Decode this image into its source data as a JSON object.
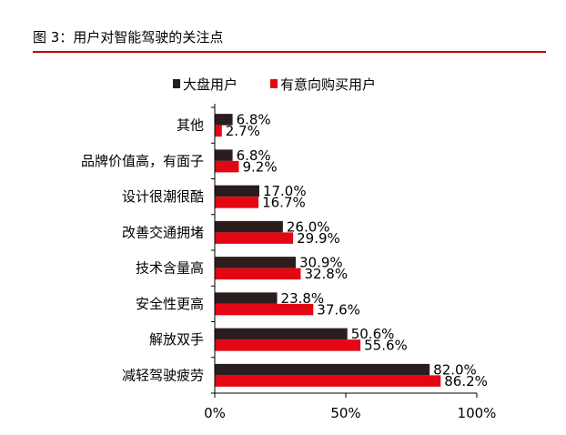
{
  "figure": {
    "title": "图 3：用户对智能驾驶的关注点"
  },
  "chart_data": {
    "type": "bar",
    "orientation": "horizontal",
    "categories": [
      "其他",
      "品牌价值高，有面子",
      "设计很潮很酷",
      "改善交通拥堵",
      "技术含量高",
      "安全性更高",
      "解放双手",
      "减轻驾驶疲劳"
    ],
    "series": [
      {
        "name": "大盘用户",
        "values": [
          6.8,
          6.8,
          17.0,
          26.0,
          30.9,
          23.8,
          50.6,
          82.0
        ],
        "labels": [
          "6.8%",
          "6.8%",
          "17.0%",
          "26.0%",
          "30.9%",
          "23.8%",
          "50.6%",
          "82.0%"
        ]
      },
      {
        "name": "有意向购买用户",
        "values": [
          2.7,
          9.2,
          16.7,
          29.9,
          32.8,
          37.6,
          55.6,
          86.2
        ],
        "labels": [
          "2.7%",
          "9.2%",
          "16.7%",
          "29.9%",
          "32.8%",
          "37.6%",
          "55.6%",
          "86.2%"
        ]
      }
    ],
    "xlim": [
      0,
      100
    ],
    "xticks": [
      0,
      50,
      100
    ],
    "xtick_labels": [
      "0%",
      "50%",
      "100%"
    ],
    "legend_position": "top-left",
    "grid": false,
    "colors": [
      "#2b1d1d",
      "#e30613"
    ]
  }
}
